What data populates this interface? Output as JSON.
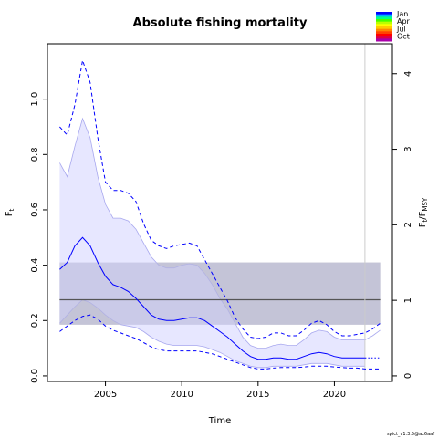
{
  "chart_data": {
    "type": "line",
    "title": "Absolute fishing mortality",
    "xlabel": "Time",
    "ylabel_left": {
      "main": "F",
      "sub": "t"
    },
    "ylabel_right": {
      "main": "F",
      "sub1": "t",
      "mid": "/F",
      "sub2": "MSY"
    },
    "xlim": [
      2001.2,
      2023.8
    ],
    "ylim": [
      -0.02,
      1.2
    ],
    "ylim_right_max": 4.55,
    "fmsy_ratio": 0.273,
    "x_ticks": [
      2005,
      2010,
      2015,
      2020
    ],
    "y_ticks": [
      "0.0",
      "0.2",
      "0.4",
      "0.6",
      "0.8",
      "1.0"
    ],
    "y_tick_values": [
      0.0,
      0.2,
      0.4,
      0.6,
      0.8,
      1.0
    ],
    "y2_ticks": [
      "0",
      "1",
      "2",
      "3",
      "4"
    ],
    "y2_tick_values": [
      0,
      1,
      2,
      3,
      4
    ],
    "vline_x": 2022,
    "fmsy_band": {
      "lower": 0.185,
      "upper": 0.41,
      "estimate": 0.275,
      "x_start": 2002,
      "x_end": 2023
    },
    "series": [
      {
        "name": "F_t",
        "x": [
          2002,
          2002.5,
          2003,
          2003.5,
          2004,
          2004.5,
          2005,
          2005.5,
          2006,
          2006.5,
          2007,
          2007.5,
          2008,
          2008.5,
          2009,
          2009.5,
          2010,
          2010.5,
          2011,
          2011.5,
          2012,
          2012.5,
          2013,
          2013.5,
          2014,
          2014.5,
          2015,
          2015.5,
          2016,
          2016.5,
          2017,
          2017.5,
          2018,
          2018.5,
          2019,
          2019.5,
          2020,
          2020.5,
          2021,
          2021.5,
          2022
        ],
        "y": [
          0.385,
          0.41,
          0.47,
          0.5,
          0.47,
          0.41,
          0.36,
          0.33,
          0.32,
          0.305,
          0.28,
          0.25,
          0.22,
          0.205,
          0.2,
          0.2,
          0.205,
          0.21,
          0.21,
          0.2,
          0.18,
          0.16,
          0.14,
          0.115,
          0.09,
          0.07,
          0.06,
          0.06,
          0.065,
          0.065,
          0.06,
          0.06,
          0.07,
          0.08,
          0.085,
          0.08,
          0.07,
          0.065,
          0.065,
          0.065,
          0.065
        ],
        "lower": [
          0.19,
          0.22,
          0.25,
          0.275,
          0.265,
          0.245,
          0.22,
          0.2,
          0.185,
          0.18,
          0.175,
          0.16,
          0.14,
          0.125,
          0.115,
          0.11,
          0.11,
          0.11,
          0.11,
          0.105,
          0.095,
          0.085,
          0.07,
          0.055,
          0.045,
          0.035,
          0.03,
          0.03,
          0.035,
          0.035,
          0.035,
          0.035,
          0.04,
          0.045,
          0.045,
          0.045,
          0.04,
          0.035,
          0.035,
          0.035,
          0.035
        ],
        "upper": [
          0.77,
          0.72,
          0.83,
          0.93,
          0.86,
          0.72,
          0.62,
          0.57,
          0.57,
          0.56,
          0.53,
          0.48,
          0.43,
          0.4,
          0.39,
          0.39,
          0.4,
          0.405,
          0.4,
          0.37,
          0.33,
          0.28,
          0.24,
          0.19,
          0.14,
          0.11,
          0.1,
          0.1,
          0.11,
          0.115,
          0.11,
          0.11,
          0.13,
          0.155,
          0.165,
          0.16,
          0.14,
          0.13,
          0.13,
          0.13,
          0.13
        ]
      },
      {
        "name": "F_t/F_MSY",
        "x": [
          2002,
          2002.5,
          2003,
          2003.5,
          2004,
          2004.5,
          2005,
          2005.5,
          2006,
          2006.5,
          2007,
          2007.5,
          2008,
          2008.5,
          2009,
          2009.5,
          2010,
          2010.5,
          2011,
          2011.5,
          2012,
          2012.5,
          2013,
          2013.5,
          2014,
          2014.5,
          2015,
          2015.5,
          2016,
          2016.5,
          2017,
          2017.5,
          2018,
          2018.5,
          2019,
          2019.5,
          2020,
          2020.5,
          2021,
          2021.5,
          2022,
          2022.5,
          2023
        ],
        "lower": [
          0.16,
          0.18,
          0.2,
          0.215,
          0.22,
          0.205,
          0.18,
          0.165,
          0.155,
          0.145,
          0.135,
          0.12,
          0.105,
          0.095,
          0.09,
          0.09,
          0.09,
          0.09,
          0.09,
          0.085,
          0.08,
          0.07,
          0.06,
          0.05,
          0.04,
          0.03,
          0.025,
          0.025,
          0.028,
          0.03,
          0.03,
          0.03,
          0.032,
          0.035,
          0.035,
          0.035,
          0.032,
          0.03,
          0.028,
          0.028,
          0.025,
          0.025,
          0.025
        ],
        "upper": [
          0.9,
          0.87,
          0.98,
          1.14,
          1.06,
          0.86,
          0.7,
          0.67,
          0.67,
          0.66,
          0.63,
          0.55,
          0.49,
          0.47,
          0.46,
          0.47,
          0.475,
          0.48,
          0.47,
          0.42,
          0.37,
          0.32,
          0.27,
          0.21,
          0.17,
          0.14,
          0.135,
          0.14,
          0.155,
          0.155,
          0.145,
          0.145,
          0.165,
          0.19,
          0.2,
          0.185,
          0.16,
          0.145,
          0.145,
          0.15,
          0.155,
          0.17,
          0.19
        ]
      }
    ],
    "forecast": {
      "x": [
        2022,
        2022.5,
        2023
      ],
      "y": [
        0.065,
        0.065,
        0.065
      ],
      "upper_x": [
        2022,
        2022.5,
        2023
      ],
      "upper_y": [
        0.13,
        0.145,
        0.165
      ]
    },
    "legend": {
      "labels": [
        "Jan",
        "Apr",
        "Jul",
        "Oct"
      ],
      "colors": [
        "#0000ff",
        "#00aaff",
        "#00ff88",
        "#44ff00",
        "#bbff00",
        "#ffff00",
        "#ffcc00",
        "#ff8800",
        "#ff4400",
        "#ff0000",
        "#dd0044",
        "#aa00aa"
      ]
    },
    "colors": {
      "ci_fill": "#e3e3ff",
      "ci_edge": "#a8a8ee",
      "line": "#0000ff",
      "band": "#d3d3d3",
      "band_overlap": "#b8b8da",
      "fmsy_line": "#555555",
      "vline": "#cccccc"
    },
    "footnote": "spict_v1.3.5@ac6aaf"
  }
}
